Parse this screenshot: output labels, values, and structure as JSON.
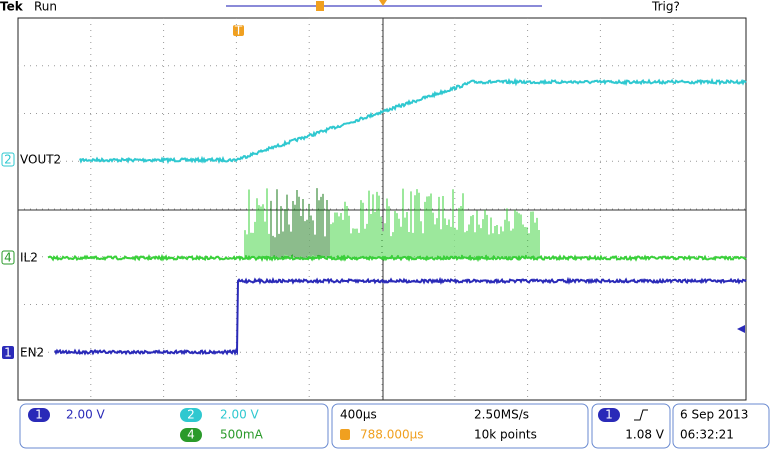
{
  "header": {
    "brand": "Tek",
    "status": "Run",
    "trigger_status": "Trig?",
    "trigger_marker": "T"
  },
  "channels": [
    {
      "number": "2",
      "label": "VOUT2"
    },
    {
      "number": "4",
      "label": "IL2"
    },
    {
      "number": "1",
      "label": "EN2"
    }
  ],
  "readout": {
    "ch1": {
      "number": "1",
      "scale": "2.00 V"
    },
    "ch2": {
      "number": "2",
      "scale": "2.00 V"
    },
    "ch4": {
      "number": "4",
      "scale": "500mA"
    },
    "timebase": "400µs",
    "sample_rate": "2.50MS/s",
    "trigger_position": "788.000µs",
    "record_length": "10k points",
    "trigger_channel": "1",
    "trigger_level": "1.08 V",
    "date": "6 Sep 2013",
    "time": "06:32:21"
  }
}
